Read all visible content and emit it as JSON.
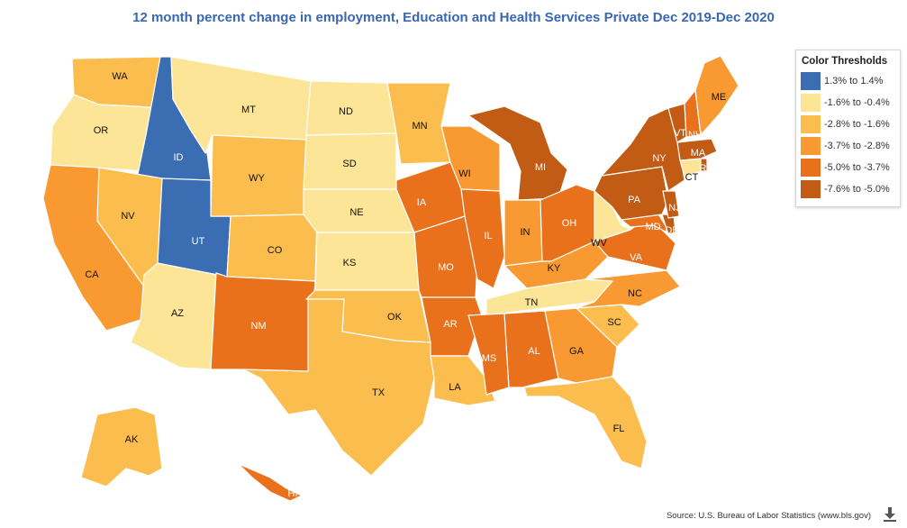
{
  "title": "12 month percent change in employment, Education and Health Services Private Dec 2019-Dec 2020",
  "legend": {
    "title": "Color Thresholds",
    "items": [
      {
        "label": "1.3% to 1.4%",
        "color": "#3b6db3"
      },
      {
        "label": "-1.6% to -0.4%",
        "color": "#fde597"
      },
      {
        "label": "-2.8% to -1.6%",
        "color": "#fbbd4d"
      },
      {
        "label": "-3.7% to -2.8%",
        "color": "#f89a31"
      },
      {
        "label": "-5.0% to -3.7%",
        "color": "#e9711c"
      },
      {
        "label": "-7.6% to -5.0%",
        "color": "#c25b14"
      }
    ]
  },
  "states": [
    {
      "abbr": "WA",
      "tier": 2
    },
    {
      "abbr": "OR",
      "tier": 1
    },
    {
      "abbr": "CA",
      "tier": 3
    },
    {
      "abbr": "ID",
      "tier": 0
    },
    {
      "abbr": "NV",
      "tier": 2
    },
    {
      "abbr": "AZ",
      "tier": 1
    },
    {
      "abbr": "UT",
      "tier": 0
    },
    {
      "abbr": "MT",
      "tier": 1
    },
    {
      "abbr": "WY",
      "tier": 2
    },
    {
      "abbr": "CO",
      "tier": 2
    },
    {
      "abbr": "NM",
      "tier": 4
    },
    {
      "abbr": "ND",
      "tier": 1
    },
    {
      "abbr": "SD",
      "tier": 1
    },
    {
      "abbr": "NE",
      "tier": 1
    },
    {
      "abbr": "KS",
      "tier": 1
    },
    {
      "abbr": "OK",
      "tier": 2
    },
    {
      "abbr": "TX",
      "tier": 2
    },
    {
      "abbr": "MN",
      "tier": 2
    },
    {
      "abbr": "IA",
      "tier": 4
    },
    {
      "abbr": "MO",
      "tier": 4
    },
    {
      "abbr": "AR",
      "tier": 4
    },
    {
      "abbr": "LA",
      "tier": 2
    },
    {
      "abbr": "WI",
      "tier": 3
    },
    {
      "abbr": "IL",
      "tier": 4
    },
    {
      "abbr": "MI",
      "tier": 5
    },
    {
      "abbr": "IN",
      "tier": 3
    },
    {
      "abbr": "OH",
      "tier": 4
    },
    {
      "abbr": "KY",
      "tier": 3
    },
    {
      "abbr": "TN",
      "tier": 1
    },
    {
      "abbr": "MS",
      "tier": 4
    },
    {
      "abbr": "AL",
      "tier": 4
    },
    {
      "abbr": "GA",
      "tier": 3
    },
    {
      "abbr": "FL",
      "tier": 2
    },
    {
      "abbr": "SC",
      "tier": 2
    },
    {
      "abbr": "NC",
      "tier": 3
    },
    {
      "abbr": "VA",
      "tier": 4
    },
    {
      "abbr": "WV",
      "tier": 1
    },
    {
      "abbr": "MD",
      "tier": 4
    },
    {
      "abbr": "DE",
      "tier": 5
    },
    {
      "abbr": "PA",
      "tier": 5
    },
    {
      "abbr": "NJ",
      "tier": 5
    },
    {
      "abbr": "NY",
      "tier": 5
    },
    {
      "abbr": "CT",
      "tier": 1
    },
    {
      "abbr": "RI",
      "tier": 5
    },
    {
      "abbr": "MA",
      "tier": 5
    },
    {
      "abbr": "VT",
      "tier": 5
    },
    {
      "abbr": "NH",
      "tier": 4
    },
    {
      "abbr": "ME",
      "tier": 3
    },
    {
      "abbr": "AK",
      "tier": 2
    },
    {
      "abbr": "HI",
      "tier": 4
    }
  ],
  "source": "Source: U.S. Bureau of Labor Statistics (www.bls.gov)",
  "download_icon": "download-icon"
}
